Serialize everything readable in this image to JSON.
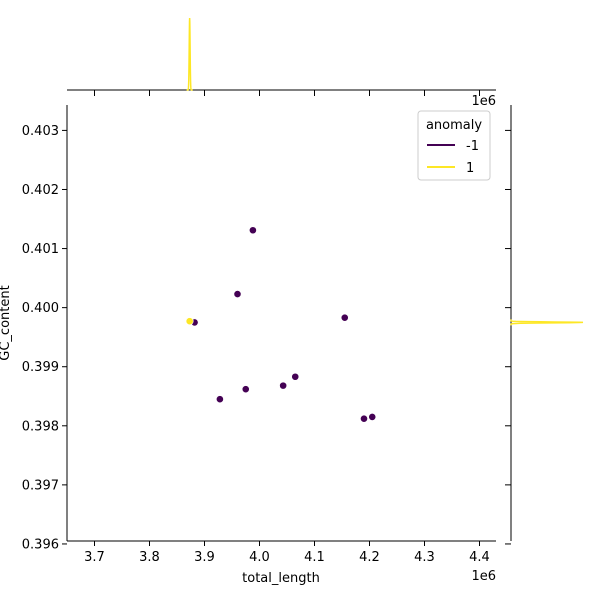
{
  "chart_data": {
    "type": "scatter",
    "title": "",
    "xlabel": "total_length",
    "ylabel": "GC_content",
    "x_offset_label": "1e6",
    "top_offset_label": "1e6",
    "xlim": [
      3650000,
      4430000
    ],
    "ylim": [
      0.39605,
      0.40343
    ],
    "x_ticks": [
      3700000,
      3800000,
      3900000,
      4000000,
      4100000,
      4200000,
      4300000,
      4400000
    ],
    "x_tick_labels": [
      "3.7",
      "3.8",
      "3.9",
      "4.0",
      "4.1",
      "4.2",
      "4.3",
      "4.4"
    ],
    "y_ticks": [
      0.396,
      0.397,
      0.398,
      0.399,
      0.4,
      0.401,
      0.402,
      0.403
    ],
    "y_tick_labels": [
      "0.396",
      "0.397",
      "0.398",
      "0.399",
      "0.400",
      "0.401",
      "0.402",
      "0.403"
    ],
    "legend": {
      "title": "anomaly",
      "position": "top-right",
      "entries": [
        {
          "label": "-1",
          "color": "#440154"
        },
        {
          "label": "1",
          "color": "#fde725"
        }
      ]
    },
    "series": [
      {
        "legend_label": "-1",
        "color": "#440154",
        "points": [
          {
            "x": 3882000,
            "y": 0.39975
          },
          {
            "x": 3928000,
            "y": 0.39845
          },
          {
            "x": 3960000,
            "y": 0.40023
          },
          {
            "x": 3975000,
            "y": 0.39862
          },
          {
            "x": 3988000,
            "y": 0.40131
          },
          {
            "x": 4043000,
            "y": 0.39868
          },
          {
            "x": 4065000,
            "y": 0.39883
          },
          {
            "x": 4155000,
            "y": 0.39983
          },
          {
            "x": 4190000,
            "y": 0.39812
          },
          {
            "x": 4205000,
            "y": 0.39815
          }
        ]
      },
      {
        "legend_label": "1",
        "color": "#fde725",
        "points": [
          {
            "x": 3873000,
            "y": 0.39977
          }
        ]
      }
    ],
    "marginal_x": {
      "series": "1",
      "peak_x": 3873000
    },
    "marginal_y": {
      "series": "1",
      "peak_y": 0.39975
    }
  }
}
